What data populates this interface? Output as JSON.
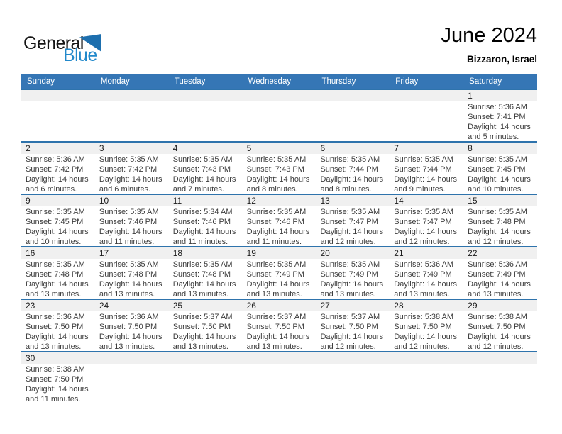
{
  "logo": {
    "part1": "General",
    "part2": "Blue"
  },
  "header": {
    "title": "June 2024",
    "location": "Bizzaron, Israel"
  },
  "weekdays": [
    "Sunday",
    "Monday",
    "Tuesday",
    "Wednesday",
    "Thursday",
    "Friday",
    "Saturday"
  ],
  "colors": {
    "header_bar": "#3576b5",
    "row_line": "#2e73ac",
    "day_band": "#f0f0f0",
    "logo_blue": "#2289cb",
    "logo_triangle": "#1d6fae"
  },
  "weeks": [
    [
      null,
      null,
      null,
      null,
      null,
      null,
      {
        "day": "1",
        "sunrise": "Sunrise: 5:36 AM",
        "sunset": "Sunset: 7:41 PM",
        "daylight1": "Daylight: 14 hours",
        "daylight2": "and 5 minutes."
      }
    ],
    [
      {
        "day": "2",
        "sunrise": "Sunrise: 5:36 AM",
        "sunset": "Sunset: 7:42 PM",
        "daylight1": "Daylight: 14 hours",
        "daylight2": "and 6 minutes."
      },
      {
        "day": "3",
        "sunrise": "Sunrise: 5:35 AM",
        "sunset": "Sunset: 7:42 PM",
        "daylight1": "Daylight: 14 hours",
        "daylight2": "and 6 minutes."
      },
      {
        "day": "4",
        "sunrise": "Sunrise: 5:35 AM",
        "sunset": "Sunset: 7:43 PM",
        "daylight1": "Daylight: 14 hours",
        "daylight2": "and 7 minutes."
      },
      {
        "day": "5",
        "sunrise": "Sunrise: 5:35 AM",
        "sunset": "Sunset: 7:43 PM",
        "daylight1": "Daylight: 14 hours",
        "daylight2": "and 8 minutes."
      },
      {
        "day": "6",
        "sunrise": "Sunrise: 5:35 AM",
        "sunset": "Sunset: 7:44 PM",
        "daylight1": "Daylight: 14 hours",
        "daylight2": "and 8 minutes."
      },
      {
        "day": "7",
        "sunrise": "Sunrise: 5:35 AM",
        "sunset": "Sunset: 7:44 PM",
        "daylight1": "Daylight: 14 hours",
        "daylight2": "and 9 minutes."
      },
      {
        "day": "8",
        "sunrise": "Sunrise: 5:35 AM",
        "sunset": "Sunset: 7:45 PM",
        "daylight1": "Daylight: 14 hours",
        "daylight2": "and 10 minutes."
      }
    ],
    [
      {
        "day": "9",
        "sunrise": "Sunrise: 5:35 AM",
        "sunset": "Sunset: 7:45 PM",
        "daylight1": "Daylight: 14 hours",
        "daylight2": "and 10 minutes."
      },
      {
        "day": "10",
        "sunrise": "Sunrise: 5:35 AM",
        "sunset": "Sunset: 7:46 PM",
        "daylight1": "Daylight: 14 hours",
        "daylight2": "and 11 minutes."
      },
      {
        "day": "11",
        "sunrise": "Sunrise: 5:34 AM",
        "sunset": "Sunset: 7:46 PM",
        "daylight1": "Daylight: 14 hours",
        "daylight2": "and 11 minutes."
      },
      {
        "day": "12",
        "sunrise": "Sunrise: 5:35 AM",
        "sunset": "Sunset: 7:46 PM",
        "daylight1": "Daylight: 14 hours",
        "daylight2": "and 11 minutes."
      },
      {
        "day": "13",
        "sunrise": "Sunrise: 5:35 AM",
        "sunset": "Sunset: 7:47 PM",
        "daylight1": "Daylight: 14 hours",
        "daylight2": "and 12 minutes."
      },
      {
        "day": "14",
        "sunrise": "Sunrise: 5:35 AM",
        "sunset": "Sunset: 7:47 PM",
        "daylight1": "Daylight: 14 hours",
        "daylight2": "and 12 minutes."
      },
      {
        "day": "15",
        "sunrise": "Sunrise: 5:35 AM",
        "sunset": "Sunset: 7:48 PM",
        "daylight1": "Daylight: 14 hours",
        "daylight2": "and 12 minutes."
      }
    ],
    [
      {
        "day": "16",
        "sunrise": "Sunrise: 5:35 AM",
        "sunset": "Sunset: 7:48 PM",
        "daylight1": "Daylight: 14 hours",
        "daylight2": "and 13 minutes."
      },
      {
        "day": "17",
        "sunrise": "Sunrise: 5:35 AM",
        "sunset": "Sunset: 7:48 PM",
        "daylight1": "Daylight: 14 hours",
        "daylight2": "and 13 minutes."
      },
      {
        "day": "18",
        "sunrise": "Sunrise: 5:35 AM",
        "sunset": "Sunset: 7:48 PM",
        "daylight1": "Daylight: 14 hours",
        "daylight2": "and 13 minutes."
      },
      {
        "day": "19",
        "sunrise": "Sunrise: 5:35 AM",
        "sunset": "Sunset: 7:49 PM",
        "daylight1": "Daylight: 14 hours",
        "daylight2": "and 13 minutes."
      },
      {
        "day": "20",
        "sunrise": "Sunrise: 5:35 AM",
        "sunset": "Sunset: 7:49 PM",
        "daylight1": "Daylight: 14 hours",
        "daylight2": "and 13 minutes."
      },
      {
        "day": "21",
        "sunrise": "Sunrise: 5:36 AM",
        "sunset": "Sunset: 7:49 PM",
        "daylight1": "Daylight: 14 hours",
        "daylight2": "and 13 minutes."
      },
      {
        "day": "22",
        "sunrise": "Sunrise: 5:36 AM",
        "sunset": "Sunset: 7:49 PM",
        "daylight1": "Daylight: 14 hours",
        "daylight2": "and 13 minutes."
      }
    ],
    [
      {
        "day": "23",
        "sunrise": "Sunrise: 5:36 AM",
        "sunset": "Sunset: 7:50 PM",
        "daylight1": "Daylight: 14 hours",
        "daylight2": "and 13 minutes."
      },
      {
        "day": "24",
        "sunrise": "Sunrise: 5:36 AM",
        "sunset": "Sunset: 7:50 PM",
        "daylight1": "Daylight: 14 hours",
        "daylight2": "and 13 minutes."
      },
      {
        "day": "25",
        "sunrise": "Sunrise: 5:37 AM",
        "sunset": "Sunset: 7:50 PM",
        "daylight1": "Daylight: 14 hours",
        "daylight2": "and 13 minutes."
      },
      {
        "day": "26",
        "sunrise": "Sunrise: 5:37 AM",
        "sunset": "Sunset: 7:50 PM",
        "daylight1": "Daylight: 14 hours",
        "daylight2": "and 13 minutes."
      },
      {
        "day": "27",
        "sunrise": "Sunrise: 5:37 AM",
        "sunset": "Sunset: 7:50 PM",
        "daylight1": "Daylight: 14 hours",
        "daylight2": "and 12 minutes."
      },
      {
        "day": "28",
        "sunrise": "Sunrise: 5:38 AM",
        "sunset": "Sunset: 7:50 PM",
        "daylight1": "Daylight: 14 hours",
        "daylight2": "and 12 minutes."
      },
      {
        "day": "29",
        "sunrise": "Sunrise: 5:38 AM",
        "sunset": "Sunset: 7:50 PM",
        "daylight1": "Daylight: 14 hours",
        "daylight2": "and 12 minutes."
      }
    ],
    [
      {
        "day": "30",
        "sunrise": "Sunrise: 5:38 AM",
        "sunset": "Sunset: 7:50 PM",
        "daylight1": "Daylight: 14 hours",
        "daylight2": "and 11 minutes."
      },
      null,
      null,
      null,
      null,
      null,
      null
    ]
  ]
}
